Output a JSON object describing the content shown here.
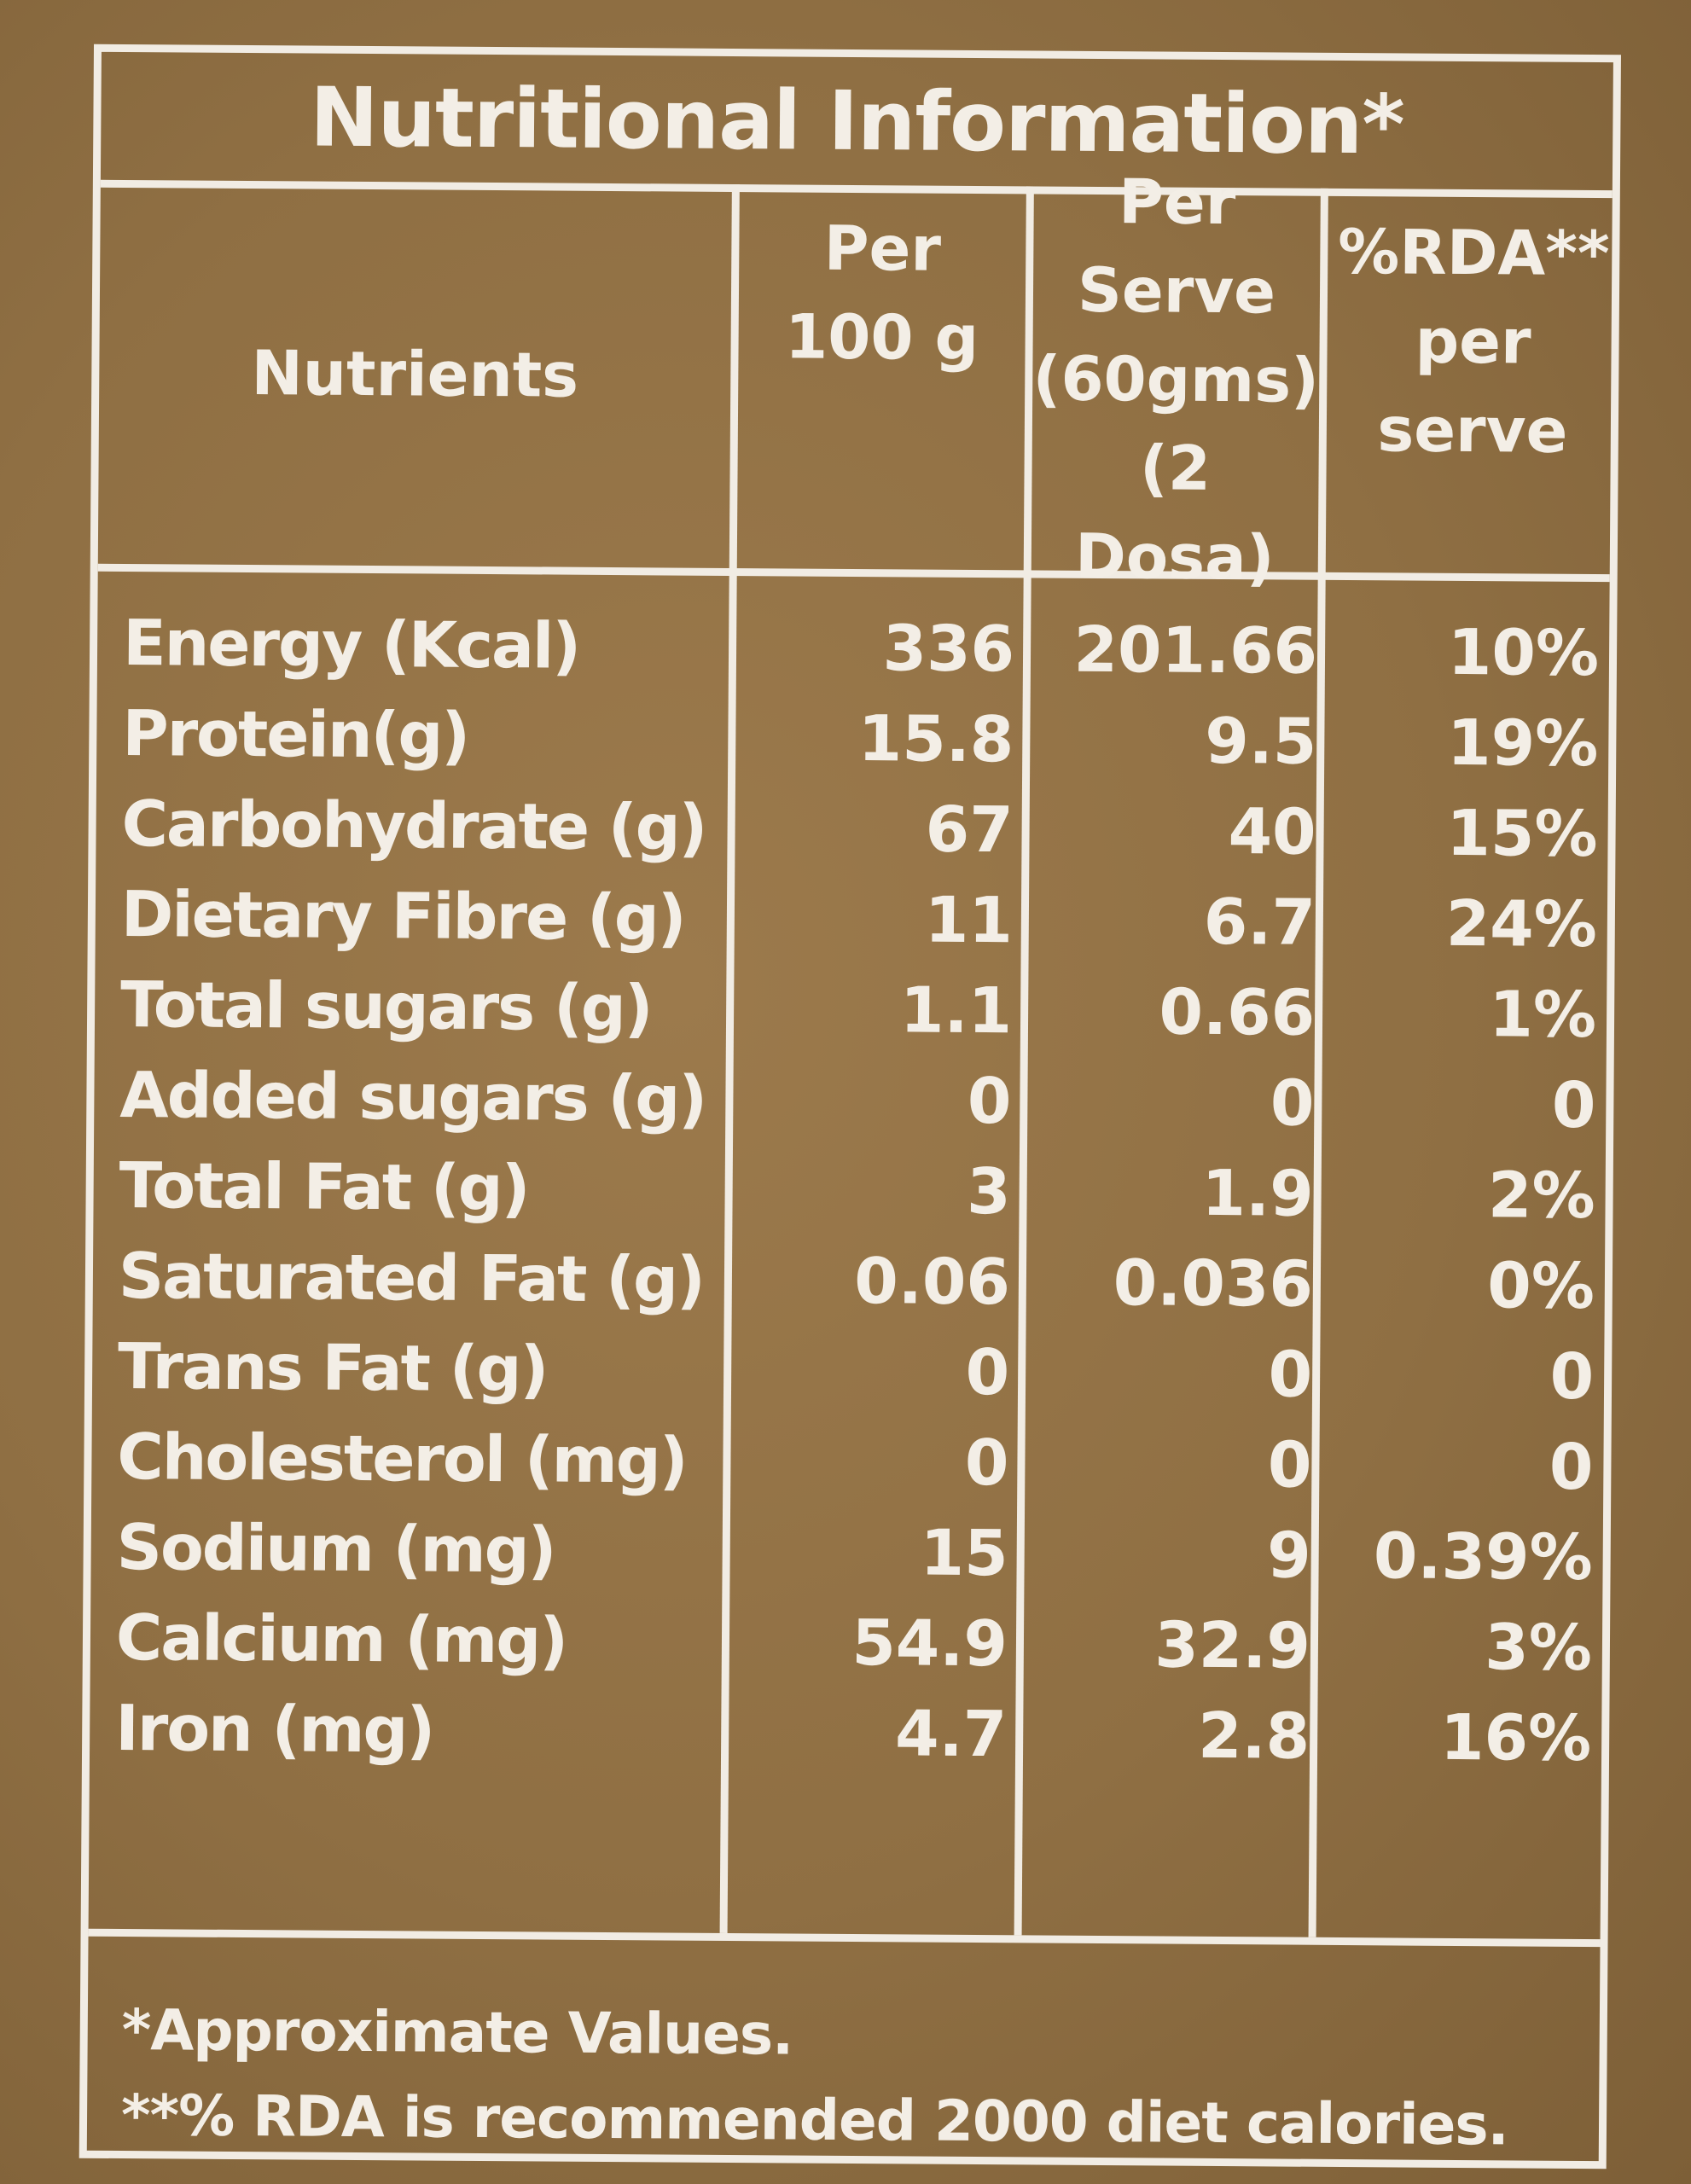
{
  "title": "Nutritional Information*",
  "headers": {
    "nutrients": "Nutrients",
    "per100": [
      "Per",
      "100 g"
    ],
    "perServe": [
      "Per",
      "Serve",
      "(60gms)",
      "(2 Dosa)"
    ],
    "rda": [
      "%RDA**",
      "per",
      "serve"
    ]
  },
  "rows": [
    {
      "name": "Energy (Kcal)",
      "per100": "336",
      "serve": "201.66",
      "rda": "10%"
    },
    {
      "name": "Protein(g)",
      "per100": "15.8",
      "serve": "9.5",
      "rda": "19%"
    },
    {
      "name": "Carbohydrate (g)",
      "per100": "67",
      "serve": "40",
      "rda": "15%"
    },
    {
      "name": "Dietary Fibre (g)",
      "per100": "11",
      "serve": "6.7",
      "rda": "24%"
    },
    {
      "name": "Total sugars (g)",
      "per100": "1.1",
      "serve": "0.66",
      "rda": "1%"
    },
    {
      "name": "Added sugars (g)",
      "per100": "0",
      "serve": "0",
      "rda": "0"
    },
    {
      "name": "Total Fat (g)",
      "per100": "3",
      "serve": "1.9",
      "rda": "2%"
    },
    {
      "name": "Saturated Fat (g)",
      "per100": "0.06",
      "serve": "0.036",
      "rda": "0%"
    },
    {
      "name": "Trans Fat (g)",
      "per100": "0",
      "serve": "0",
      "rda": "0"
    },
    {
      "name": "Cholesterol (mg)",
      "per100": "0",
      "serve": "0",
      "rda": "0"
    },
    {
      "name": "Sodium (mg)",
      "per100": "15",
      "serve": "9",
      "rda": "0.39%"
    },
    {
      "name": "Calcium (mg)",
      "per100": "54.9",
      "serve": "32.9",
      "rda": "3%"
    },
    {
      "name": "Iron (mg)",
      "per100": "4.7",
      "serve": "2.8",
      "rda": "16%"
    }
  ],
  "footnotes": [
    "*Approximate Values.",
    "**% RDA is recommended 2000 diet calories."
  ]
}
